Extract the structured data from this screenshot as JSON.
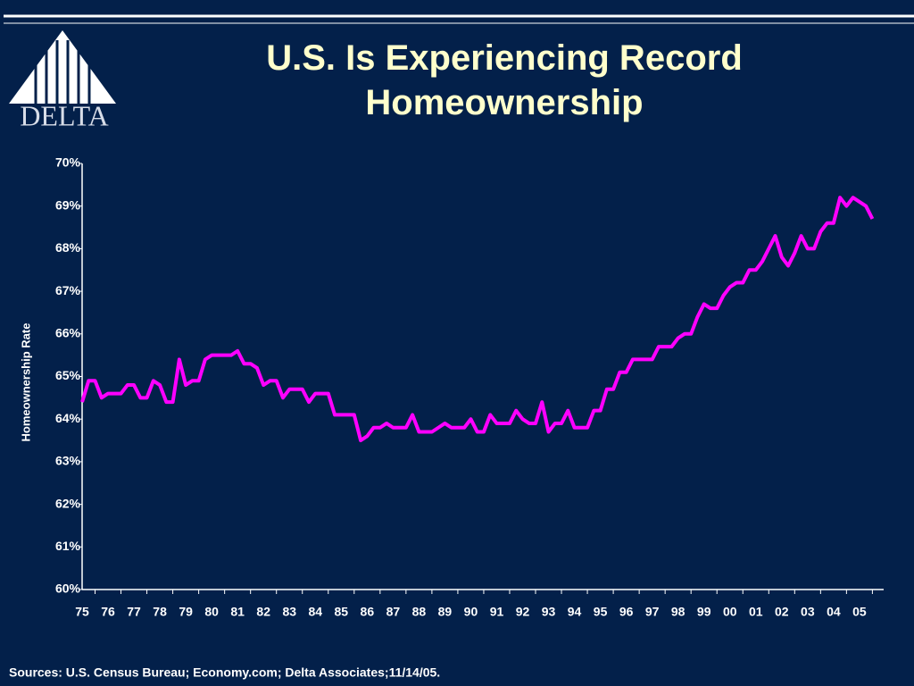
{
  "logo": {
    "text": "DELTA"
  },
  "chart_data": {
    "type": "line",
    "title": "U.S. Is Experiencing Record Homeownership",
    "ylabel": "Homeownership Rate",
    "source": "Sources:  U.S. Census Bureau; Economy.com; Delta Associates;11/14/05.",
    "categories": [
      "75",
      null,
      null,
      null,
      "76",
      null,
      null,
      null,
      "77",
      null,
      null,
      null,
      "78",
      null,
      null,
      null,
      "79",
      null,
      null,
      null,
      "80",
      null,
      null,
      null,
      "81",
      null,
      null,
      null,
      "82",
      null,
      null,
      null,
      "83",
      null,
      null,
      null,
      "84",
      null,
      null,
      null,
      "85",
      null,
      null,
      null,
      "86",
      null,
      null,
      null,
      "87",
      null,
      null,
      null,
      "88",
      null,
      null,
      null,
      "89",
      null,
      null,
      null,
      "90",
      null,
      null,
      null,
      "91",
      null,
      null,
      null,
      "92",
      null,
      null,
      null,
      "93",
      null,
      null,
      null,
      "94",
      null,
      null,
      null,
      "95",
      null,
      null,
      null,
      "96",
      null,
      null,
      null,
      "97",
      null,
      null,
      null,
      "98",
      null,
      null,
      null,
      "99",
      null,
      null,
      null,
      "00",
      null,
      null,
      null,
      "01",
      null,
      null,
      null,
      "02",
      null,
      null,
      null,
      "03",
      null,
      null,
      null,
      "04",
      null,
      null,
      null,
      "05",
      null,
      null
    ],
    "series": [
      {
        "name": "Homeownership Rate",
        "color": "#ff00ff",
        "values": [
          64.4,
          64.9,
          64.9,
          64.5,
          64.6,
          64.6,
          64.6,
          64.8,
          64.8,
          64.5,
          64.5,
          64.9,
          64.8,
          64.4,
          64.4,
          65.4,
          64.8,
          64.9,
          64.9,
          65.4,
          65.5,
          65.5,
          65.5,
          65.5,
          65.6,
          65.3,
          65.3,
          65.2,
          64.8,
          64.9,
          64.9,
          64.5,
          64.7,
          64.7,
          64.7,
          64.4,
          64.6,
          64.6,
          64.6,
          64.1,
          64.1,
          64.1,
          64.1,
          63.5,
          63.6,
          63.8,
          63.8,
          63.9,
          63.8,
          63.8,
          63.8,
          64.1,
          63.7,
          63.7,
          63.7,
          63.8,
          63.9,
          63.8,
          63.8,
          63.8,
          64.0,
          63.7,
          63.7,
          64.1,
          63.9,
          63.9,
          63.9,
          64.2,
          64.0,
          63.9,
          63.9,
          64.4,
          63.7,
          63.9,
          63.9,
          64.2,
          63.8,
          63.8,
          63.8,
          64.2,
          64.2,
          64.7,
          64.7,
          65.1,
          65.1,
          65.4,
          65.4,
          65.4,
          65.4,
          65.7,
          65.7,
          65.7,
          65.9,
          66.0,
          66.0,
          66.4,
          66.7,
          66.6,
          66.6,
          66.9,
          67.1,
          67.2,
          67.2,
          67.5,
          67.5,
          67.7,
          68.0,
          68.3,
          67.8,
          67.6,
          67.9,
          68.3,
          68.0,
          68.0,
          68.4,
          68.6,
          68.6,
          69.2,
          69.0,
          69.2,
          69.1,
          69.0,
          68.7
        ]
      }
    ],
    "ylim": [
      60,
      70
    ],
    "yticks": [
      {
        "value": 60,
        "label": "60%"
      },
      {
        "value": 61,
        "label": "61%"
      },
      {
        "value": 62,
        "label": "62%"
      },
      {
        "value": 63,
        "label": "63%"
      },
      {
        "value": 64,
        "label": "64%"
      },
      {
        "value": 65,
        "label": "65%"
      },
      {
        "value": 66,
        "label": "66%"
      },
      {
        "value": 67,
        "label": "67%"
      },
      {
        "value": 68,
        "label": "68%"
      },
      {
        "value": 69,
        "label": "69%"
      },
      {
        "value": 70,
        "label": "70%"
      }
    ],
    "grid": false
  }
}
